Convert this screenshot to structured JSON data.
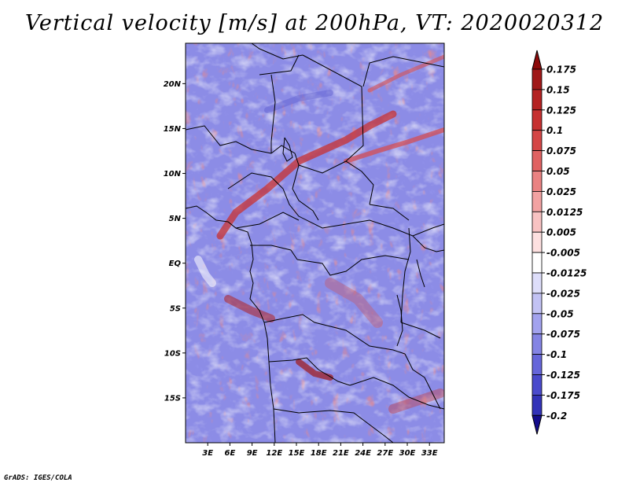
{
  "title": "Vertical velocity [m/s] at 200hPa, VT: 2020020312",
  "footer": "GrADS: IGES/COLA",
  "chart_data": {
    "type": "heatmap",
    "title": "Vertical velocity [m/s] at 200hPa, VT: 2020020312",
    "variable": "Vertical velocity",
    "units": "m/s",
    "level": "200hPa",
    "valid_time": "2020020312",
    "xlim": [
      0,
      35
    ],
    "ylim": [
      -20,
      24.5
    ],
    "x_ticks": [
      {
        "value": 3,
        "label": "3E"
      },
      {
        "value": 6,
        "label": "6E"
      },
      {
        "value": 9,
        "label": "9E"
      },
      {
        "value": 12,
        "label": "12E"
      },
      {
        "value": 15,
        "label": "15E"
      },
      {
        "value": 18,
        "label": "18E"
      },
      {
        "value": 21,
        "label": "21E"
      },
      {
        "value": 24,
        "label": "24E"
      },
      {
        "value": 27,
        "label": "27E"
      },
      {
        "value": 30,
        "label": "30E"
      },
      {
        "value": 33,
        "label": "33E"
      }
    ],
    "y_ticks": [
      {
        "value": 20,
        "label": "20N"
      },
      {
        "value": 15,
        "label": "15N"
      },
      {
        "value": 10,
        "label": "10N"
      },
      {
        "value": 5,
        "label": "5N"
      },
      {
        "value": 0,
        "label": "EQ"
      },
      {
        "value": -5,
        "label": "5S"
      },
      {
        "value": -10,
        "label": "10S"
      },
      {
        "value": -15,
        "label": "15S"
      }
    ],
    "colorbar": {
      "levels": [
        {
          "label": "0.175",
          "color": "#a01818"
        },
        {
          "label": "0.15",
          "color": "#b42222"
        },
        {
          "label": "0.125",
          "color": "#c63030"
        },
        {
          "label": "0.1",
          "color": "#d44646"
        },
        {
          "label": "0.075",
          "color": "#e06262"
        },
        {
          "label": "0.05",
          "color": "#ea8282"
        },
        {
          "label": "0.025",
          "color": "#f2a2a2"
        },
        {
          "label": "0.0125",
          "color": "#f8c2c2"
        },
        {
          "label": "0.005",
          "color": "#fde0e0"
        },
        {
          "label": "-0.005",
          "color": "#ffffff"
        },
        {
          "label": "-0.0125",
          "color": "#dedefa"
        },
        {
          "label": "-0.025",
          "color": "#c2c2f4"
        },
        {
          "label": "-0.05",
          "color": "#a2a2ee"
        },
        {
          "label": "-0.075",
          "color": "#8484e4"
        },
        {
          "label": "-0.1",
          "color": "#6666da"
        },
        {
          "label": "-0.125",
          "color": "#4a4acc"
        },
        {
          "label": "-0.175",
          "color": "#3232b8"
        },
        {
          "label": "-0.2",
          "color": "#2020a0"
        }
      ],
      "max_color": "#8c0a0a",
      "min_color": "#140c8c"
    }
  }
}
